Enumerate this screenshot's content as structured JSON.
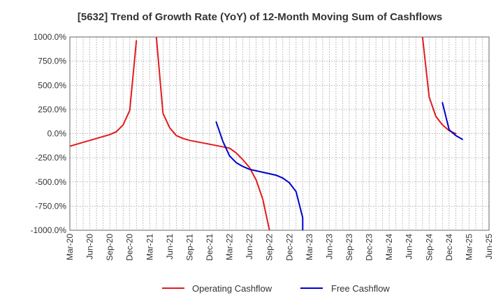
{
  "chart_data": {
    "type": "line",
    "title": "[5632]  Trend of Growth Rate (YoY) of 12-Month Moving Sum of Cashflows",
    "xlabel": "",
    "ylabel": "",
    "ylim": [
      -1000,
      1000
    ],
    "grid": true,
    "legend_position": "bottom",
    "x_ticks": [
      "Mar-20",
      "Jun-20",
      "Sep-20",
      "Dec-20",
      "Mar-21",
      "Jun-21",
      "Sep-21",
      "Dec-21",
      "Mar-22",
      "Jun-22",
      "Sep-22",
      "Dec-22",
      "Mar-23",
      "Jun-23",
      "Sep-23",
      "Dec-23",
      "Mar-24",
      "Jun-24",
      "Sep-24",
      "Dec-24",
      "Mar-25",
      "Jun-25"
    ],
    "y_ticks": [
      {
        "value": 1000,
        "label": "1000.0%"
      },
      {
        "value": 750,
        "label": "750.0%"
      },
      {
        "value": 500,
        "label": "500.0%"
      },
      {
        "value": 250,
        "label": "250.0%"
      },
      {
        "value": 0,
        "label": "0.0%"
      },
      {
        "value": -250,
        "label": "-250.0%"
      },
      {
        "value": -500,
        "label": "-500.0%"
      },
      {
        "value": -750,
        "label": "-750.0%"
      },
      {
        "value": -1000,
        "label": "-1000.0%"
      }
    ],
    "series": [
      {
        "name": "Operating Cashflow",
        "color": "#e31a1c",
        "segments": [
          [
            [
              "2020-03",
              -130
            ],
            [
              "2020-06",
              -70
            ],
            [
              "2020-09",
              -10
            ],
            [
              "2020-10",
              20
            ],
            [
              "2020-11",
              90
            ],
            [
              "2020-12",
              240
            ],
            [
              "2021-01",
              960
            ]
          ],
          [
            [
              "2021-04",
              1000
            ],
            [
              "2021-05",
              210
            ],
            [
              "2021-06",
              60
            ],
            [
              "2021-07",
              -20
            ],
            [
              "2021-08",
              -50
            ],
            [
              "2021-09",
              -70
            ],
            [
              "2021-12",
              -110
            ],
            [
              "2022-03",
              -150
            ],
            [
              "2022-04",
              -200
            ],
            [
              "2022-05",
              -270
            ],
            [
              "2022-06",
              -350
            ],
            [
              "2022-07",
              -480
            ],
            [
              "2022-08",
              -680
            ],
            [
              "2022-09",
              -1000
            ]
          ],
          [
            [
              "2024-08",
              1000
            ],
            [
              "2024-09",
              380
            ],
            [
              "2024-10",
              180
            ],
            [
              "2024-11",
              90
            ],
            [
              "2024-12",
              30
            ],
            [
              "2025-01",
              0
            ]
          ]
        ]
      },
      {
        "name": "Free Cashflow",
        "color": "#0000cc",
        "segments": [
          [
            [
              "2022-01",
              120
            ],
            [
              "2022-02",
              -80
            ],
            [
              "2022-03",
              -230
            ],
            [
              "2022-04",
              -300
            ],
            [
              "2022-05",
              -340
            ],
            [
              "2022-06",
              -370
            ],
            [
              "2022-08",
              -400
            ],
            [
              "2022-10",
              -430
            ],
            [
              "2022-11",
              -460
            ],
            [
              "2022-12",
              -510
            ],
            [
              "2023-01",
              -600
            ],
            [
              "2023-02",
              -870
            ],
            [
              "2023-02",
              -1000
            ]
          ],
          [
            [
              "2024-11",
              320
            ],
            [
              "2024-12",
              40
            ],
            [
              "2025-01",
              -20
            ],
            [
              "2025-02",
              -60
            ]
          ]
        ]
      }
    ]
  }
}
